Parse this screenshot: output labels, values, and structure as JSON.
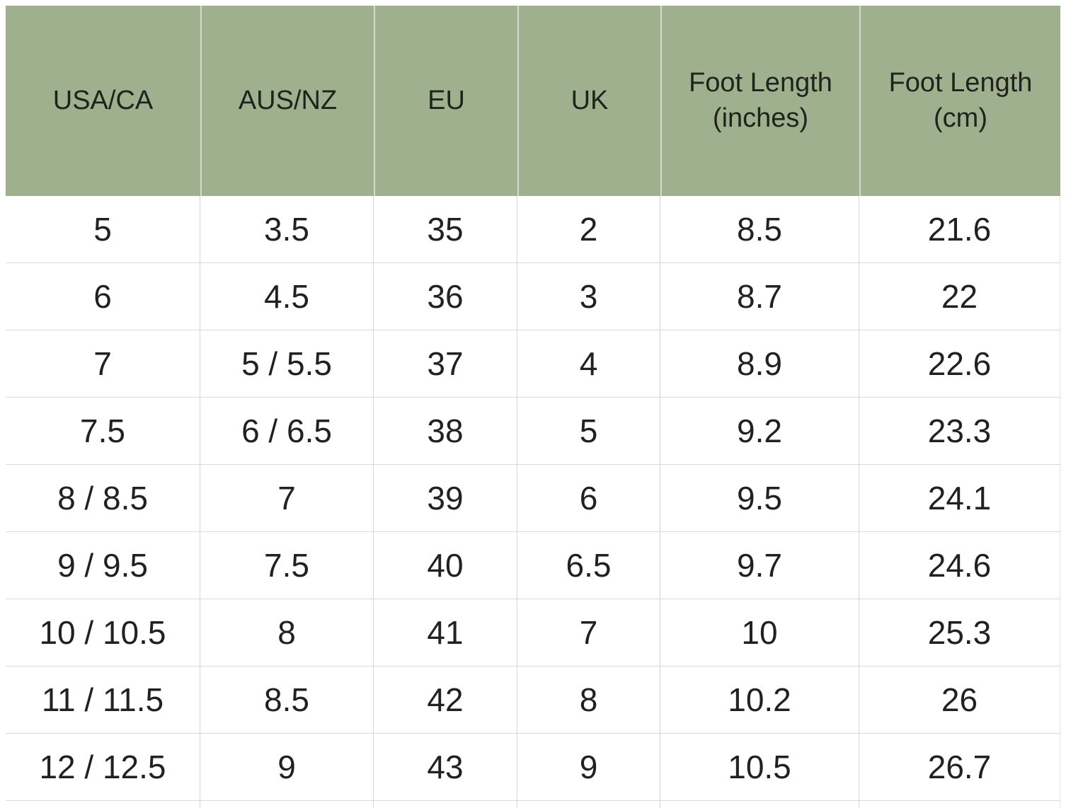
{
  "chart_data": {
    "type": "table",
    "columns": [
      "USA/CA",
      "AUS/NZ",
      "EU",
      "UK",
      "Foot Length (inches)",
      "Foot Length (cm)"
    ],
    "rows": [
      [
        "5",
        "3.5",
        "35",
        "2",
        "8.5",
        "21.6"
      ],
      [
        "6",
        "4.5",
        "36",
        "3",
        "8.7",
        "22"
      ],
      [
        "7",
        "5 / 5.5",
        "37",
        "4",
        "8.9",
        "22.6"
      ],
      [
        "7.5",
        "6 / 6.5",
        "38",
        "5",
        "9.2",
        "23.3"
      ],
      [
        "8 / 8.5",
        "7",
        "39",
        "6",
        "9.5",
        "24.1"
      ],
      [
        "9 / 9.5",
        "7.5",
        "40",
        "6.5",
        "9.7",
        "24.6"
      ],
      [
        "10 / 10.5",
        "8",
        "41",
        "7",
        "10",
        "25.3"
      ],
      [
        "11 / 11.5",
        "8.5",
        "42",
        "8",
        "10.2",
        "26"
      ],
      [
        "12 / 12.5",
        "9",
        "43",
        "9",
        "10.5",
        "26.7"
      ]
    ],
    "layout": {
      "header_position": "top",
      "grid": "on",
      "partial_tenth_row_cut_off": true
    },
    "colors": {
      "header_bg": "#9fb08e",
      "header_text": "#1f231c",
      "body_bg": "#ffffff",
      "grid_line": "#d4d4d4",
      "body_text": "#212121"
    }
  }
}
